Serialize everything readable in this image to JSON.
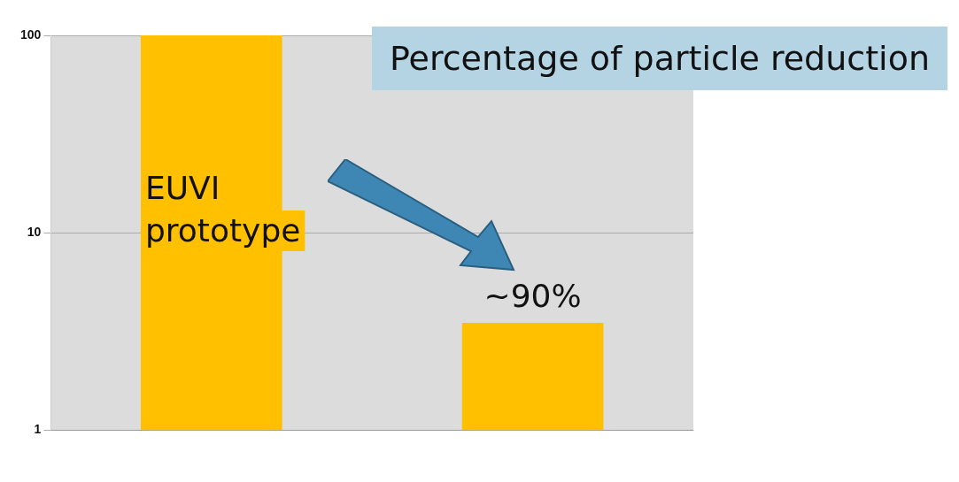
{
  "chart_data": {
    "type": "bar",
    "title": "Percentage of particle reduction",
    "categories": [
      null,
      null
    ],
    "values": [
      100,
      3.5
    ],
    "color": "#ffc000",
    "log": true,
    "ylim": [
      1,
      100
    ],
    "yticks": [
      1,
      10,
      100
    ],
    "grid": "y",
    "annotations": [
      "EUVI prototype",
      "~90%"
    ]
  }
}
